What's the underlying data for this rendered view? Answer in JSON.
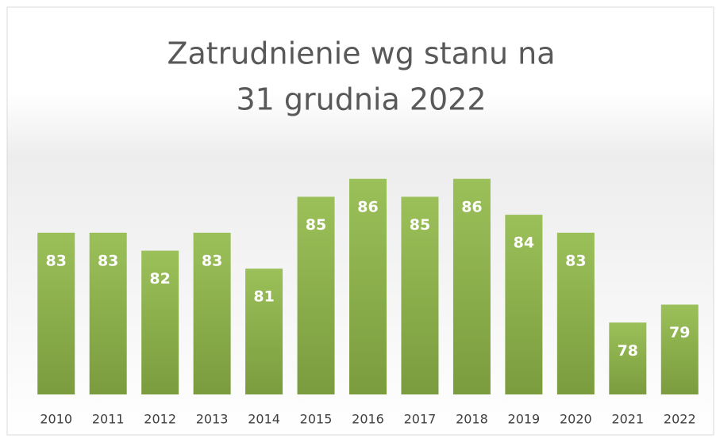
{
  "chart_data": {
    "type": "bar",
    "title": [
      "Zatrudnienie wg stanu na",
      "31 grudnia 2022"
    ],
    "categories": [
      "2010",
      "2011",
      "2012",
      "2013",
      "2014",
      "2015",
      "2016",
      "2017",
      "2018",
      "2019",
      "2020",
      "2021",
      "2022"
    ],
    "values": [
      83,
      83,
      82,
      83,
      81,
      85,
      86,
      85,
      86,
      84,
      83,
      78,
      79
    ],
    "color": "#8db04a",
    "ylim": [
      74,
      90
    ]
  }
}
